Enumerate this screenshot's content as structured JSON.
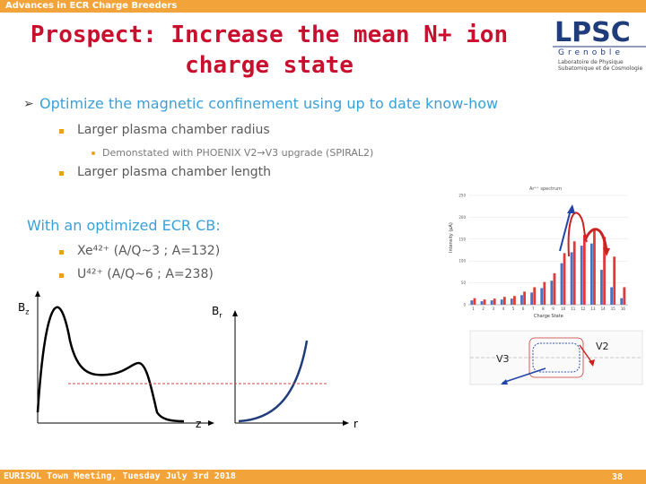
{
  "header": {
    "conference": "Advances in ECR Charge Breeders"
  },
  "title": {
    "line1": "Prospect: Increase the mean N+ ion",
    "line2": "charge state"
  },
  "logo": {
    "name": "LPSC",
    "city": "Grenoble",
    "line1": "Laboratoire de Physique",
    "line2": "Subatomique et de Cosmologie"
  },
  "bullets": {
    "item1": "Optimize the magnetic confinement using up to date  know-how",
    "item1_sub1": "Larger plasma chamber radius",
    "item1_sub1_sub1": "Demonstated with PHOENIX V2→V3 upgrade (SPIRAL2)",
    "item1_sub2": "Larger plasma chamber length",
    "item2": "With an optimized ECR CB:",
    "item2_sub1": "Xe⁴²⁺ (A/Q~3 ; A=132)",
    "item2_sub2": "U⁴²⁺ (A/Q~6 ; A=238)"
  },
  "figures": {
    "bz_label": "B",
    "bz_sub": "z",
    "br_label": "B",
    "br_sub": "r",
    "z_axis": "z",
    "r_axis": "r",
    "v3_label": "V3",
    "v2_label": "V2"
  },
  "chart_data": {
    "type": "bar",
    "title": "Ar⁺⁺ spectrum",
    "xlabel": "Charge State",
    "ylabel": "Intensity (µA)",
    "ylim": [
      0,
      250
    ],
    "yticks": [
      0,
      50,
      100,
      150,
      200,
      250
    ],
    "categories": [
      "1",
      "2",
      "3",
      "4",
      "5",
      "6",
      "7",
      "8",
      "9",
      "10",
      "11",
      "12",
      "13",
      "14",
      "15",
      "16"
    ],
    "series": [
      {
        "name": "",
        "color": "#4a72c4",
        "values": [
          10,
          8,
          10,
          12,
          14,
          22,
          28,
          38,
          55,
          95,
          120,
          135,
          140,
          80,
          40,
          15
        ]
      },
      {
        "name": "",
        "color": "#e23a3a",
        "values": [
          15,
          12,
          14,
          18,
          20,
          30,
          40,
          52,
          72,
          118,
          145,
          160,
          175,
          155,
          110,
          40
        ]
      }
    ]
  },
  "footer": {
    "text": "EURISOL Town Meeting, Tuesday July 3rd 2018",
    "page": "38"
  },
  "colors": {
    "accent": "#f2a33a",
    "title": "#c8102e",
    "bullet": "#3aa0d8"
  }
}
